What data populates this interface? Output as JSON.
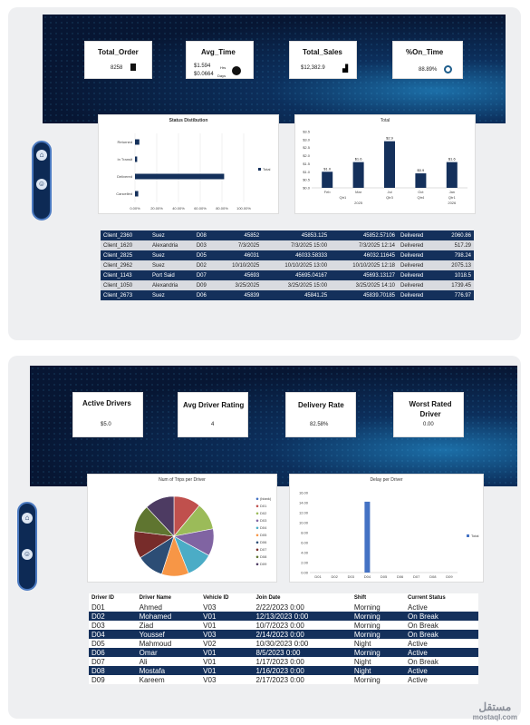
{
  "dashboard1": {
    "kpis": [
      {
        "title": "Total_Order",
        "value": "8258",
        "sub": ""
      },
      {
        "title": "Avg_Time",
        "value": "$1.594",
        "sub": "$0.0664",
        "unit1": "Hrs",
        "unit2": "Days"
      },
      {
        "title": "Total_Sales",
        "value": "$12,382.9",
        "sub": ""
      },
      {
        "title": "%On_Time",
        "value": "88.89%",
        "sub": ""
      }
    ],
    "status_chart": {
      "type": "bar",
      "title": "Status Distibution",
      "categories": [
        "Returned",
        "In Transit",
        "Delivered",
        "Cancelled"
      ],
      "values": [
        0.04,
        0.02,
        0.82,
        0.03
      ],
      "xticks": [
        "0.00%",
        "20.00%",
        "40.00%",
        "60.00%",
        "80.00%",
        "100.00%"
      ],
      "legend": "Total"
    },
    "total_chart": {
      "type": "bar",
      "title": "Total",
      "categories": [
        "Feb",
        "Mar",
        "Jul",
        "Oct",
        "Jan"
      ],
      "groups": [
        "Qtr1",
        "Qtr3",
        "Qtr4",
        "Qtr1"
      ],
      "years": [
        "2025",
        "2026"
      ],
      "values": [
        1.0,
        1.6,
        2.9,
        0.9,
        1.6
      ],
      "labels": [
        "$1.0",
        "$1.6",
        "$2.9",
        "$0.9",
        "$1.6"
      ],
      "yticks": [
        "$3.5",
        "$3.0",
        "$2.5",
        "$2.0",
        "$1.5",
        "$1.0",
        "$0.5",
        "$0.0"
      ]
    },
    "table": [
      [
        "Client_2360",
        "Suez",
        "D08",
        "45852",
        "45853.125",
        "45852.57106",
        "Delivered",
        "2060.86"
      ],
      [
        "Client_1620",
        "Alexandria",
        "D03",
        "7/3/2025",
        "7/3/2025 15:00",
        "7/3/2025 12:14",
        "Delivered",
        "517.29"
      ],
      [
        "Client_2825",
        "Suez",
        "D05",
        "46031",
        "46033.58333",
        "46032.11645",
        "Delivered",
        "798.24"
      ],
      [
        "Client_2962",
        "Suez",
        "D02",
        "10/10/2025",
        "10/10/2025 13:00",
        "10/10/2025 12:18",
        "Delivered",
        "2075.13"
      ],
      [
        "Client_1143",
        "Port Said",
        "D07",
        "45693",
        "45695.04167",
        "45693.13127",
        "Delivered",
        "1018.5"
      ],
      [
        "Client_1050",
        "Alexandria",
        "D09",
        "3/25/2025",
        "3/25/2025 15:00",
        "3/25/2025 14:10",
        "Delivered",
        "1739.45"
      ],
      [
        "Client_2673",
        "Suez",
        "D06",
        "45839",
        "45841.25",
        "45839.70185",
        "Delivered",
        "776.97"
      ]
    ]
  },
  "dashboard2": {
    "kpis": [
      {
        "title": "Active Drivers",
        "value": "$5.0"
      },
      {
        "title": "Avg Driver Rating",
        "value": "4"
      },
      {
        "title": "Delivery Rate",
        "value": "82.58%"
      },
      {
        "title": "Worst Rated Driver",
        "value": "0.00"
      }
    ],
    "pie_chart": {
      "type": "pie",
      "title": "Num of Trips per Driver",
      "legend": [
        "(blank)",
        "D01",
        "D02",
        "D03",
        "D04",
        "D05",
        "D06",
        "D07",
        "D08",
        "D09"
      ],
      "values": [
        0,
        11,
        11,
        11,
        11,
        11,
        11,
        11,
        11,
        12
      ],
      "colors": [
        "#4472c4",
        "#c0504d",
        "#9bbb59",
        "#8064a2",
        "#4bacc6",
        "#f79646",
        "#2c4d75",
        "#772c2a",
        "#5f7530",
        "#4d3b62"
      ]
    },
    "delay_chart": {
      "type": "bar",
      "title": "Delay per Driver",
      "categories": [
        "D01",
        "D02",
        "D03",
        "D04",
        "D05",
        "D06",
        "D07",
        "D08",
        "D09"
      ],
      "values": [
        0,
        0,
        0,
        14.2,
        0,
        0,
        0,
        0,
        0
      ],
      "yticks": [
        "16.00",
        "14.00",
        "12.00",
        "10.00",
        "8.00",
        "6.00",
        "4.00",
        "2.00",
        "0.00"
      ],
      "legend": "Total"
    },
    "table_headers": [
      "Driver ID",
      "Driver Name",
      "Vehicle ID",
      "Join Date",
      "Shift",
      "Current Status"
    ],
    "table": [
      [
        "D01",
        "Ahmed",
        "V03",
        "2/22/2023 0:00",
        "Morning",
        "Active"
      ],
      [
        "D02",
        "Mohamed",
        "V01",
        "12/13/2023 0:00",
        "Morning",
        "On Break"
      ],
      [
        "D03",
        "Ziad",
        "V01",
        "10/7/2023 0:00",
        "Morning",
        "On Break"
      ],
      [
        "D04",
        "Youssef",
        "V03",
        "2/14/2023 0:00",
        "Morning",
        "On Break"
      ],
      [
        "D05",
        "Mahmoud",
        "V02",
        "10/30/2023 0:00",
        "Night",
        "Active"
      ],
      [
        "D06",
        "Omar",
        "V01",
        "8/5/2023 0:00",
        "Morning",
        "Active"
      ],
      [
        "D07",
        "Ali",
        "V01",
        "1/17/2023 0:00",
        "Night",
        "On Break"
      ],
      [
        "D08",
        "Mostafa",
        "V01",
        "1/16/2023 0:00",
        "Night",
        "Active"
      ],
      [
        "D09",
        "Kareem",
        "V03",
        "2/17/2023 0:00",
        "Morning",
        "Active"
      ]
    ]
  },
  "watermark": {
    "ar": "مستقل",
    "en": "mostaql.com"
  }
}
